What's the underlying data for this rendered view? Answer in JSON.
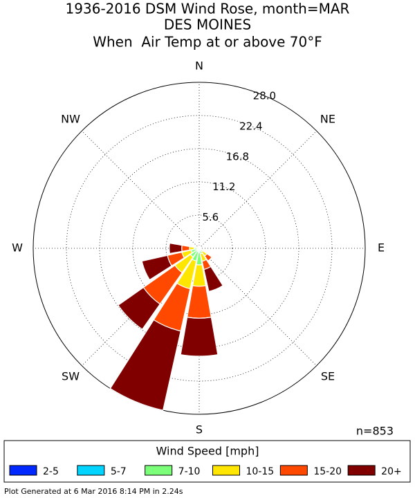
{
  "chart_data": {
    "type": "windrose",
    "title": "1936-2016 DSM Wind Rose, month=MAR",
    "subtitle": "DES MOINES",
    "condition": "When  Air Temp at or above 70°F",
    "count_label": "n=853",
    "legend_title": "Wind Speed [mph]",
    "footer": "Plot Generated at 6 Mar 2016 8:14 PM in 2.24s",
    "categories": [
      "N",
      null,
      "NE",
      null,
      "E",
      null,
      "SE",
      null,
      "S",
      null,
      "SW",
      null,
      "W",
      null,
      "NW",
      null
    ],
    "ylim": [
      0,
      28
    ],
    "yticks": [
      5.6,
      11.2,
      16.8,
      22.4,
      {
        "value": 28,
        "label": "28.0"
      }
    ],
    "grid": true,
    "series": [
      {
        "name": "2-5",
        "color": "#0028ff",
        "values": [
          0.05,
          0.05,
          0.05,
          0.05,
          0.05,
          0.05,
          0.05,
          0.05,
          0.1,
          0.1,
          0.1,
          0.1,
          0.05,
          0.05,
          0.05,
          0.05
        ]
      },
      {
        "name": "5-7",
        "color": "#00d4ff",
        "values": [
          0.1,
          0.1,
          0.05,
          0.05,
          0.05,
          0.1,
          0.15,
          0.2,
          0.5,
          0.5,
          0.4,
          0.3,
          0.2,
          0.1,
          0.1,
          0.1
        ]
      },
      {
        "name": "7-10",
        "color": "#7cff79",
        "values": [
          0.2,
          0.15,
          0.1,
          0.1,
          0.1,
          0.2,
          0.5,
          0.7,
          2.2,
          1.6,
          1.3,
          1.0,
          0.6,
          0.2,
          0.1,
          0.15
        ]
      },
      {
        "name": "10-15",
        "color": "#ffe600",
        "values": [
          0.1,
          0.05,
          0,
          0,
          0.05,
          0.2,
          0.9,
          1.3,
          3.6,
          4.8,
          3.2,
          1.6,
          0.8,
          0.2,
          0.05,
          0.05
        ]
      },
      {
        "name": "15-20",
        "color": "#ff4800",
        "values": [
          0,
          0,
          0,
          0,
          0,
          0.1,
          1.0,
          1.4,
          5.4,
          7.3,
          6.5,
          2.5,
          1.3,
          0.1,
          0,
          0
        ]
      },
      {
        "name": "20+",
        "color": "#800000",
        "values": [
          0,
          0,
          0,
          0,
          0,
          0,
          0,
          3.8,
          6.4,
          13.7,
          5.2,
          4.4,
          2.1,
          0,
          0,
          0
        ]
      }
    ]
  }
}
